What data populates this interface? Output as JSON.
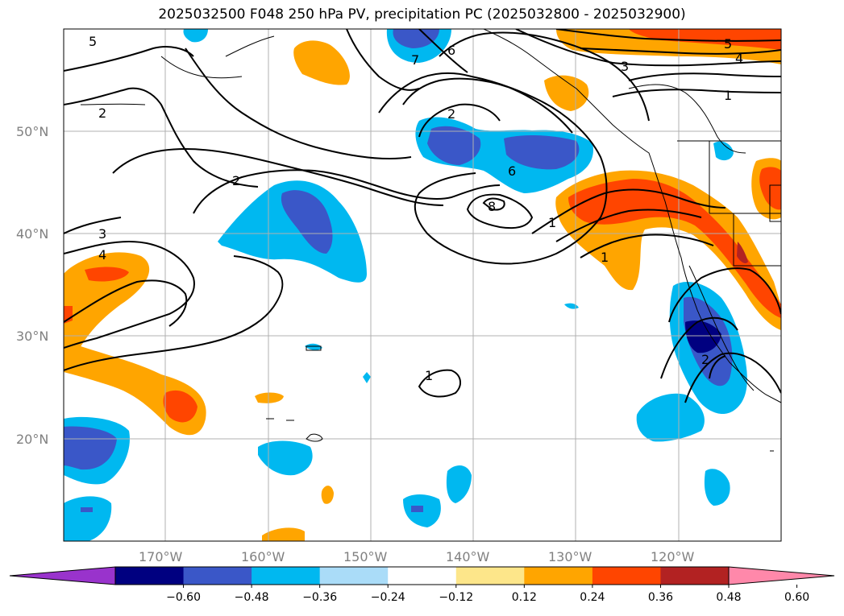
{
  "title": "2025032500 F048 250 hPa PV, precipitation PC (2025032800 - 2025032900)",
  "lat_labels": [
    "50°N",
    "40°N",
    "30°N",
    "20°N"
  ],
  "lon_labels": [
    "170°W",
    "160°W",
    "150°W",
    "140°W",
    "130°W",
    "120°W"
  ],
  "colorbar": {
    "ticks": [
      "−0.60",
      "−0.48",
      "−0.36",
      "−0.24",
      "−0.12",
      "0.12",
      "0.24",
      "0.36",
      "0.48",
      "0.60"
    ],
    "colors": [
      "#9933cc",
      "#000080",
      "#3a57c8",
      "#00b8f0",
      "#aadcf8",
      "#ffffff",
      "#fde68a",
      "#ffa500",
      "#ff4500",
      "#b22222",
      "#ff88aa"
    ]
  },
  "contour_labels": [
    "5",
    "2",
    "2",
    "3",
    "4",
    "7",
    "6",
    "2",
    "6",
    "8",
    "1",
    "1",
    "5",
    "4",
    "3",
    "1",
    "1",
    "2"
  ],
  "colors": {
    "neg_light": "#aadcf8",
    "neg_mid": "#00b8f0",
    "neg_strong": "#3a57c8",
    "neg_max": "#000080",
    "pos_light": "#fde68a",
    "pos_mid": "#ffa500",
    "pos_strong": "#ff4500",
    "pos_max": "#b22222"
  }
}
